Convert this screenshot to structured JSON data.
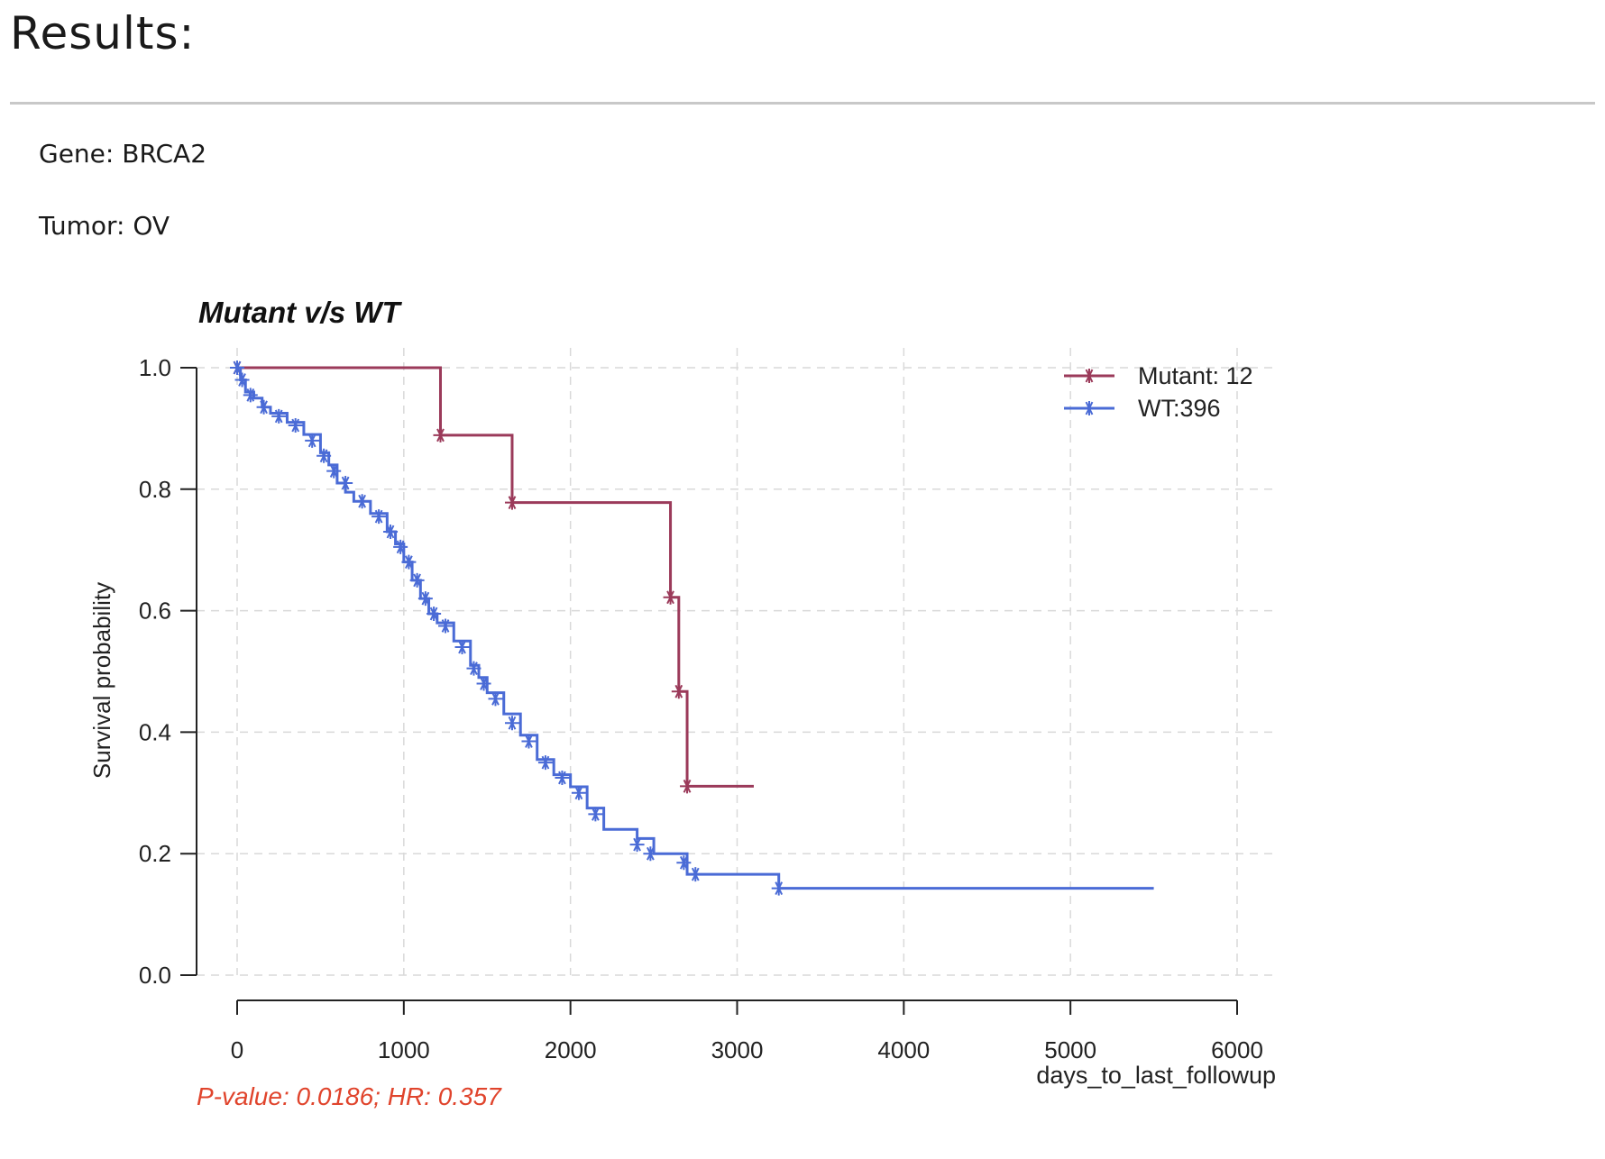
{
  "page": {
    "title": "Results:",
    "gene_line": "Gene: BRCA2",
    "tumor_line": "Tumor: OV"
  },
  "chart_data": {
    "type": "line",
    "title": "Mutant v/s WT",
    "xlabel": "days_to_last_followup",
    "ylabel": "Survival probability",
    "xlim": [
      0,
      6000
    ],
    "ylim": [
      0,
      1
    ],
    "x_ticks": [
      "0",
      "1000",
      "2000",
      "3000",
      "4000",
      "5000",
      "6000"
    ],
    "y_ticks": [
      "0.0",
      "0.2",
      "0.4",
      "0.6",
      "0.8",
      "1.0"
    ],
    "grid": true,
    "legend_position": "top-right",
    "annotation": "P-value: 0.0186; HR: 0.357",
    "colors": {
      "mutant": "#9b3a5a",
      "wt": "#4a6bd6",
      "annotation": "#e0442c",
      "grid": "#d9d9d9"
    },
    "series": [
      {
        "name": "Mutant: 12",
        "step_x": [
          0,
          1220,
          1650,
          2600,
          2650,
          2700,
          3100
        ],
        "step_y": [
          1.0,
          0.889,
          0.778,
          0.622,
          0.467,
          0.311,
          0.311
        ],
        "censor_x": [
          0,
          1220,
          1650,
          2600,
          2650,
          2700
        ],
        "censor_y": [
          1.0,
          0.889,
          0.778,
          0.622,
          0.467,
          0.311
        ]
      },
      {
        "name": "WT:396",
        "step_x": [
          0,
          20,
          50,
          100,
          150,
          200,
          300,
          400,
          500,
          550,
          600,
          650,
          700,
          800,
          900,
          950,
          1000,
          1050,
          1100,
          1150,
          1200,
          1300,
          1400,
          1450,
          1500,
          1600,
          1700,
          1800,
          1900,
          2000,
          2100,
          2200,
          2400,
          2500,
          2700,
          3250,
          5500
        ],
        "step_y": [
          1.0,
          0.98,
          0.96,
          0.95,
          0.935,
          0.925,
          0.91,
          0.89,
          0.86,
          0.84,
          0.81,
          0.795,
          0.78,
          0.76,
          0.73,
          0.71,
          0.68,
          0.65,
          0.62,
          0.595,
          0.58,
          0.55,
          0.51,
          0.49,
          0.465,
          0.43,
          0.395,
          0.355,
          0.33,
          0.31,
          0.275,
          0.24,
          0.225,
          0.2,
          0.166,
          0.143,
          0.143
        ],
        "censor_x": [
          0,
          30,
          80,
          160,
          250,
          350,
          450,
          520,
          580,
          650,
          750,
          850,
          920,
          980,
          1030,
          1080,
          1130,
          1180,
          1250,
          1350,
          1420,
          1480,
          1550,
          1650,
          1750,
          1850,
          1950,
          2050,
          2150,
          2400,
          2480,
          2680,
          2750,
          3250
        ],
        "censor_y": [
          1.0,
          0.98,
          0.955,
          0.935,
          0.92,
          0.905,
          0.88,
          0.855,
          0.83,
          0.81,
          0.78,
          0.755,
          0.73,
          0.705,
          0.68,
          0.65,
          0.62,
          0.595,
          0.575,
          0.54,
          0.505,
          0.48,
          0.455,
          0.415,
          0.385,
          0.35,
          0.325,
          0.3,
          0.265,
          0.215,
          0.2,
          0.185,
          0.166,
          0.143
        ]
      }
    ]
  }
}
